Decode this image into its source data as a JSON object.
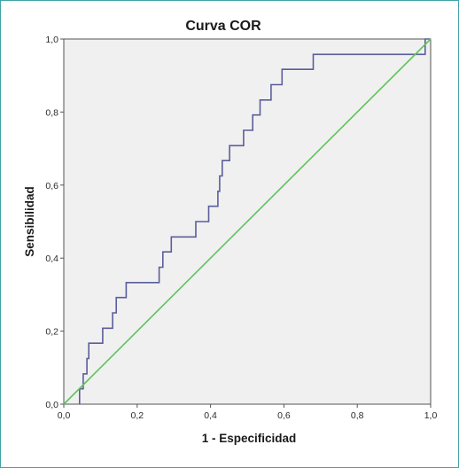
{
  "chart_data": {
    "type": "line",
    "title": "Curva COR",
    "xlabel": "1 - Especificidad",
    "ylabel": "Sensibilidad",
    "xlim": [
      0,
      1
    ],
    "ylim": [
      0,
      1
    ],
    "x_ticks": [
      "0,0",
      "0,2",
      "0,4",
      "0,6",
      "0,8",
      "1,0"
    ],
    "y_ticks": [
      "0,0",
      "0,2",
      "0,4",
      "0,6",
      "0,8",
      "1,0"
    ],
    "grid": false,
    "series": [
      {
        "color": "#5b5e9c",
        "step": true,
        "x": [
          0.043,
          0.043,
          0.053,
          0.053,
          0.063,
          0.063,
          0.068,
          0.068,
          0.074,
          0.074,
          0.106,
          0.106,
          0.133,
          0.133,
          0.143,
          0.143,
          0.17,
          0.17,
          0.26,
          0.26,
          0.27,
          0.27,
          0.293,
          0.293,
          0.36,
          0.36,
          0.395,
          0.395,
          0.42,
          0.42,
          0.425,
          0.425,
          0.432,
          0.432,
          0.452,
          0.452,
          0.49,
          0.49,
          0.515,
          0.515,
          0.535,
          0.535,
          0.565,
          0.565,
          0.595,
          0.595,
          0.68,
          0.68,
          0.97,
          0.97,
          0.985,
          0.985,
          1.0
        ],
        "y": [
          0.0,
          0.042,
          0.042,
          0.083,
          0.083,
          0.125,
          0.125,
          0.167,
          0.167,
          0.167,
          0.167,
          0.208,
          0.208,
          0.25,
          0.25,
          0.292,
          0.292,
          0.333,
          0.333,
          0.375,
          0.375,
          0.417,
          0.417,
          0.458,
          0.458,
          0.5,
          0.5,
          0.542,
          0.542,
          0.583,
          0.583,
          0.625,
          0.625,
          0.667,
          0.667,
          0.708,
          0.708,
          0.75,
          0.75,
          0.792,
          0.792,
          0.833,
          0.833,
          0.875,
          0.875,
          0.917,
          0.917,
          0.958,
          0.958,
          0.958,
          0.958,
          1.0,
          1.0
        ]
      },
      {
        "color": "#5fc35a",
        "x": [
          0,
          1
        ],
        "y": [
          0,
          1
        ]
      }
    ]
  }
}
